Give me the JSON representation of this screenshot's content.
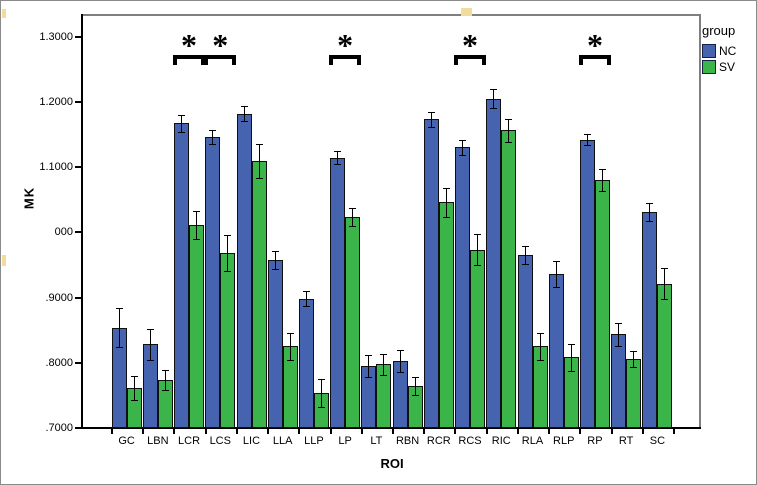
{
  "chart_data": {
    "type": "bar",
    "title": "",
    "xlabel": "ROI",
    "ylabel": "MK",
    "ylim": [
      0.7,
      1.3
    ],
    "yticks": [
      {
        "value": 1.3,
        "label": "1.3000"
      },
      {
        "value": 1.2,
        "label": "1.2000"
      },
      {
        "value": 1.1,
        "label": "1.1000"
      },
      {
        "value": 1.0,
        "label": "000"
      },
      {
        "value": 0.9,
        "label": ".9000"
      },
      {
        "value": 0.8,
        "label": ".8000"
      },
      {
        "value": 0.7,
        "label": ".7000"
      }
    ],
    "categories": [
      "GC",
      "LBN",
      "LCR",
      "LCS",
      "LIC",
      "LLA",
      "LLP",
      "LP",
      "LT",
      "RBN",
      "RCR",
      "RCS",
      "RIC",
      "RLA",
      "RLP",
      "RP",
      "RT",
      "SC"
    ],
    "series": [
      {
        "name": "NC",
        "color": "#4563AE",
        "values": [
          0.852,
          0.827,
          1.166,
          1.145,
          1.181,
          0.956,
          0.897,
          1.113,
          0.794,
          0.801,
          1.172,
          1.129,
          1.204,
          0.964,
          0.935,
          1.141,
          0.842,
          1.03
        ],
        "errors": [
          0.03,
          0.024,
          0.013,
          0.011,
          0.012,
          0.014,
          0.012,
          0.01,
          0.017,
          0.017,
          0.012,
          0.011,
          0.015,
          0.014,
          0.02,
          0.008,
          0.017,
          0.014
        ]
      },
      {
        "name": "SV",
        "color": "#3BB44A",
        "values": [
          0.76,
          0.772,
          1.01,
          0.967,
          1.108,
          0.824,
          0.752,
          1.022,
          0.796,
          0.763,
          1.045,
          0.972,
          1.155,
          0.824,
          0.807,
          1.079,
          0.804,
          0.92
        ],
        "errors": [
          0.019,
          0.015,
          0.021,
          0.028,
          0.026,
          0.021,
          0.021,
          0.014,
          0.016,
          0.014,
          0.022,
          0.024,
          0.018,
          0.021,
          0.021,
          0.017,
          0.012,
          0.024
        ]
      }
    ],
    "error_bars": true,
    "grid": false,
    "legend": {
      "title": "group",
      "position": "top-right",
      "entries": [
        "NC",
        "SV"
      ]
    },
    "significance": {
      "symbol": "*",
      "categories": [
        "LCR",
        "LCS",
        "LP",
        "RCS",
        "RP"
      ]
    }
  },
  "artifacts": {
    "selection_handle_color": "#f2dc9b",
    "pane_frame_color": "#7f7f7f"
  }
}
